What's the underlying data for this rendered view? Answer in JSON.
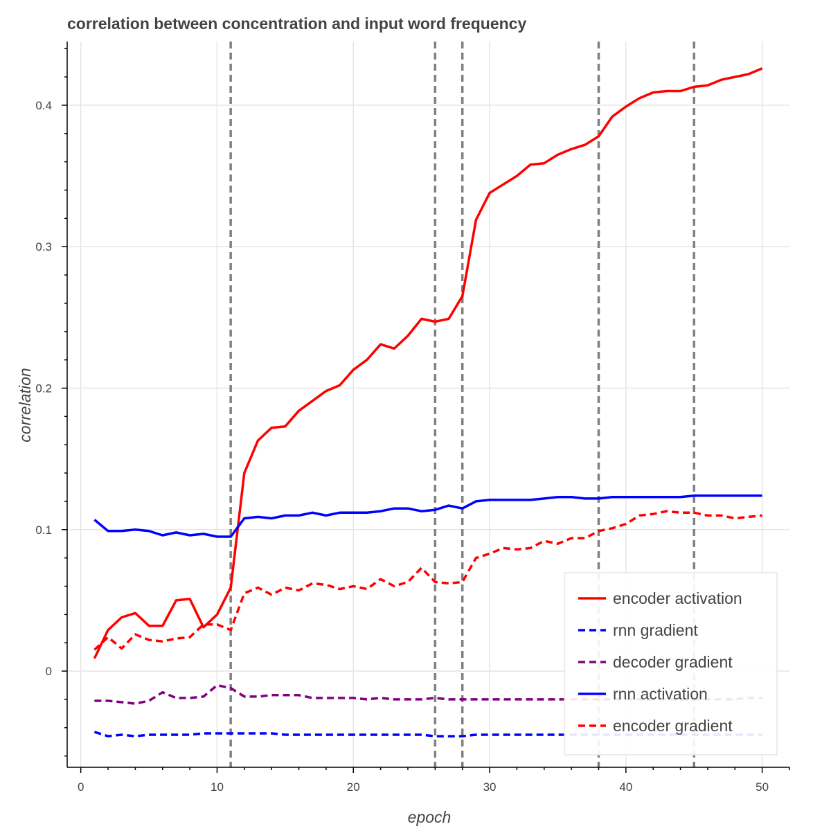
{
  "chart_data": {
    "type": "line",
    "title": "correlation between concentration and input word frequency",
    "xlabel": "epoch",
    "ylabel": "correlation",
    "xlim": [
      -1,
      52
    ],
    "ylim": [
      -0.068,
      0.445
    ],
    "x_ticks": [
      0,
      10,
      20,
      30,
      40,
      50
    ],
    "x_tick_labels": [
      "0",
      "10",
      "20",
      "30",
      "40",
      "50"
    ],
    "y_ticks": [
      0,
      0.1,
      0.2,
      0.3,
      0.4
    ],
    "y_tick_labels": [
      "0",
      "0.1",
      "0.2",
      "0.3",
      "0.4"
    ],
    "grid": true,
    "legend_position": "bottom-right",
    "vertical_lines": [
      11,
      26,
      28,
      38,
      45
    ],
    "vertical_line_color": "#808080",
    "x": [
      1,
      2,
      3,
      4,
      5,
      6,
      7,
      8,
      9,
      10,
      11,
      12,
      13,
      14,
      15,
      16,
      17,
      18,
      19,
      20,
      21,
      22,
      23,
      24,
      25,
      26,
      27,
      28,
      29,
      30,
      31,
      32,
      33,
      34,
      35,
      36,
      37,
      38,
      39,
      40,
      41,
      42,
      43,
      44,
      45,
      46,
      47,
      48,
      49,
      50
    ],
    "series": [
      {
        "name": "encoder activation",
        "color": "#ff0000",
        "dash": "solid",
        "values": [
          0.009,
          0.029,
          0.038,
          0.041,
          0.032,
          0.032,
          0.05,
          0.051,
          0.031,
          0.04,
          0.059,
          0.14,
          0.163,
          0.172,
          0.173,
          0.184,
          0.191,
          0.198,
          0.202,
          0.213,
          0.22,
          0.231,
          0.228,
          0.237,
          0.249,
          0.247,
          0.249,
          0.265,
          0.319,
          0.338,
          0.344,
          0.35,
          0.358,
          0.359,
          0.365,
          0.369,
          0.372,
          0.378,
          0.392,
          0.399,
          0.405,
          0.409,
          0.41,
          0.41,
          0.413,
          0.414,
          0.418,
          0.42,
          0.422,
          0.426
        ]
      },
      {
        "name": "rnn gradient",
        "color": "#0000ff",
        "dash": "dashed",
        "values": [
          -0.043,
          -0.046,
          -0.045,
          -0.046,
          -0.045,
          -0.045,
          -0.045,
          -0.045,
          -0.044,
          -0.044,
          -0.044,
          -0.044,
          -0.044,
          -0.044,
          -0.045,
          -0.045,
          -0.045,
          -0.045,
          -0.045,
          -0.045,
          -0.045,
          -0.045,
          -0.045,
          -0.045,
          -0.045,
          -0.046,
          -0.046,
          -0.046,
          -0.045,
          -0.045,
          -0.045,
          -0.045,
          -0.045,
          -0.045,
          -0.045,
          -0.045,
          -0.045,
          -0.045,
          -0.045,
          -0.045,
          -0.045,
          -0.045,
          -0.045,
          -0.045,
          -0.045,
          -0.045,
          -0.045,
          -0.045,
          -0.045,
          -0.045
        ]
      },
      {
        "name": "decoder gradient",
        "color": "#800080",
        "dash": "dashed",
        "values": [
          -0.021,
          -0.021,
          -0.022,
          -0.023,
          -0.021,
          -0.015,
          -0.019,
          -0.019,
          -0.018,
          -0.01,
          -0.012,
          -0.018,
          -0.018,
          -0.017,
          -0.017,
          -0.017,
          -0.019,
          -0.019,
          -0.019,
          -0.019,
          -0.02,
          -0.019,
          -0.02,
          -0.02,
          -0.02,
          -0.019,
          -0.02,
          -0.02,
          -0.02,
          -0.02,
          -0.02,
          -0.02,
          -0.02,
          -0.02,
          -0.02,
          -0.02,
          -0.02,
          -0.02,
          -0.02,
          -0.02,
          -0.02,
          -0.02,
          -0.02,
          -0.02,
          -0.02,
          -0.02,
          -0.02,
          -0.02,
          -0.019,
          -0.019
        ]
      },
      {
        "name": "rnn activation",
        "color": "#0000ff",
        "dash": "solid",
        "values": [
          0.107,
          0.099,
          0.099,
          0.1,
          0.099,
          0.096,
          0.098,
          0.096,
          0.097,
          0.095,
          0.095,
          0.108,
          0.109,
          0.108,
          0.11,
          0.11,
          0.112,
          0.11,
          0.112,
          0.112,
          0.112,
          0.113,
          0.115,
          0.115,
          0.113,
          0.114,
          0.117,
          0.115,
          0.12,
          0.121,
          0.121,
          0.121,
          0.121,
          0.122,
          0.123,
          0.123,
          0.122,
          0.122,
          0.123,
          0.123,
          0.123,
          0.123,
          0.123,
          0.123,
          0.124,
          0.124,
          0.124,
          0.124,
          0.124,
          0.124
        ]
      },
      {
        "name": "encoder gradient",
        "color": "#ff0000",
        "dash": "dashed",
        "values": [
          0.015,
          0.024,
          0.016,
          0.026,
          0.022,
          0.021,
          0.023,
          0.024,
          0.033,
          0.033,
          0.029,
          0.055,
          0.059,
          0.054,
          0.059,
          0.057,
          0.062,
          0.061,
          0.058,
          0.06,
          0.058,
          0.065,
          0.06,
          0.063,
          0.073,
          0.063,
          0.062,
          0.063,
          0.08,
          0.083,
          0.087,
          0.086,
          0.087,
          0.092,
          0.09,
          0.094,
          0.094,
          0.099,
          0.101,
          0.104,
          0.11,
          0.111,
          0.113,
          0.112,
          0.112,
          0.11,
          0.11,
          0.108,
          0.109,
          0.11
        ]
      }
    ]
  }
}
